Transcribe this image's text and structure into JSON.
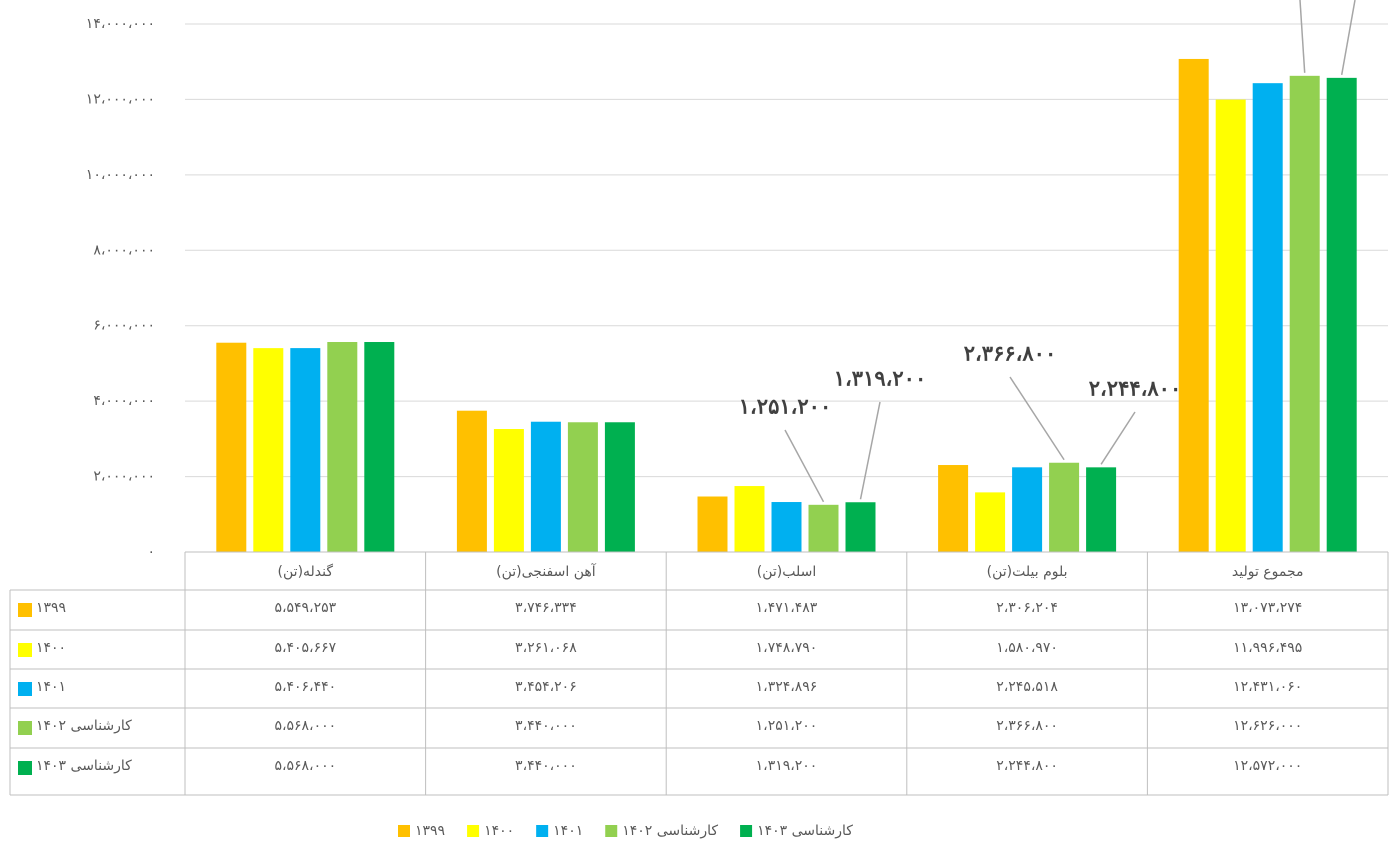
{
  "chart_data": {
    "type": "bar",
    "categories": [
      "گندله(تن)",
      "آهن اسفنجی(تن)",
      "اسلب(تن)",
      "بلوم بیلت(تن)",
      "مجموع تولید"
    ],
    "series": [
      {
        "name": "۱۳۹۹",
        "color": "#FFC000",
        "values": [
          5549253,
          3746334,
          1471483,
          2306204,
          13073274
        ],
        "value_labels": [
          "۵،۵۴۹،۲۵۳",
          "۳،۷۴۶،۳۳۴",
          "۱،۴۷۱،۴۸۳",
          "۲،۳۰۶،۲۰۴",
          "۱۳،۰۷۳،۲۷۴"
        ]
      },
      {
        "name": "۱۴۰۰",
        "color": "#FFFF00",
        "values": [
          5405667,
          3261068,
          1748790,
          1580970,
          11996495
        ],
        "value_labels": [
          "۵،۴۰۵،۶۶۷",
          "۳،۲۶۱،۰۶۸",
          "۱،۷۴۸،۷۹۰",
          "۱،۵۸۰،۹۷۰",
          "۱۱،۹۹۶،۴۹۵"
        ]
      },
      {
        "name": "۱۴۰۱",
        "color": "#00B0F0",
        "values": [
          5406440,
          3454206,
          1324896,
          2245518,
          12431060
        ],
        "value_labels": [
          "۵،۴۰۶،۴۴۰",
          "۳،۴۵۴،۲۰۶",
          "۱،۳۲۴،۸۹۶",
          "۲،۲۴۵،۵۱۸",
          "۱۲،۴۳۱،۰۶۰"
        ]
      },
      {
        "name": "کارشناسی ۱۴۰۲",
        "color": "#92D050",
        "values": [
          5568000,
          3440000,
          1251200,
          2366800,
          12626000
        ],
        "value_labels": [
          "۵،۵۶۸،۰۰۰",
          "۳،۴۴۰،۰۰۰",
          "۱،۲۵۱،۲۰۰",
          "۲،۳۶۶،۸۰۰",
          "۱۲،۶۲۶،۰۰۰"
        ]
      },
      {
        "name": "کارشناسی ۱۴۰۳",
        "color": "#00B050",
        "values": [
          5568000,
          3440000,
          1319200,
          2244800,
          12572000
        ],
        "value_labels": [
          "۵،۵۶۸،۰۰۰",
          "۳،۴۴۰،۰۰۰",
          "۱،۳۱۹،۲۰۰",
          "۲،۲۴۴،۸۰۰",
          "۱۲،۵۷۲،۰۰۰"
        ]
      }
    ],
    "ylim": [
      0,
      14000000
    ],
    "yticks": [
      {
        "value": 0,
        "label": "۰"
      },
      {
        "value": 2000000,
        "label": "۲،۰۰۰،۰۰۰"
      },
      {
        "value": 4000000,
        "label": "۴،۰۰۰،۰۰۰"
      },
      {
        "value": 6000000,
        "label": "۶،۰۰۰،۰۰۰"
      },
      {
        "value": 8000000,
        "label": "۸،۰۰۰،۰۰۰"
      },
      {
        "value": 10000000,
        "label": "۱۰،۰۰۰،۰۰۰"
      },
      {
        "value": 12000000,
        "label": "۱۲،۰۰۰،۰۰۰"
      },
      {
        "value": 14000000,
        "label": "۱۴،۰۰۰،۰۰۰"
      }
    ],
    "grid": true,
    "legend": "bottom"
  }
}
